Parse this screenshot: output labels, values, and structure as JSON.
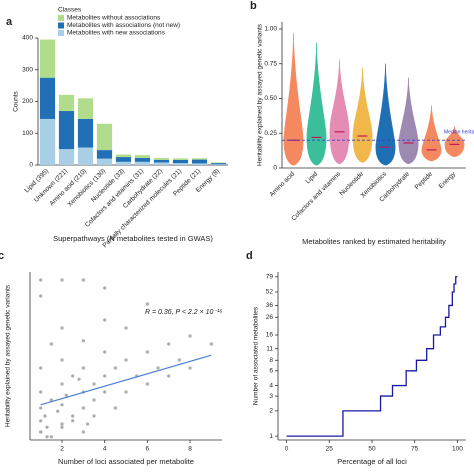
{
  "chart_data": [
    {
      "type": "bar",
      "label": "a",
      "ylabel": "Counts",
      "xlabel": "Superpathways (N metabolites tested in GWAS)",
      "legend_title": "Classes",
      "legend": "upper right",
      "categories": [
        "Lipid (395)",
        "Unknown (221)",
        "Amino acid (210)",
        "Xenobiotics (130)",
        "Nucleotide (33)",
        "Cofactors and vitamins (31)",
        "Carbohydrate (22)",
        "Partially characterized molecules (21)",
        "Peptide (21)",
        "Energy (8)"
      ],
      "series": [
        {
          "name": "Metabolites with new associations",
          "color": "#a8cfe6",
          "values": [
            145,
            50,
            55,
            20,
            10,
            10,
            8,
            6,
            5,
            2
          ]
        },
        {
          "name": "Metabolites with associations (not new)",
          "color": "#2170b5",
          "values": [
            130,
            120,
            90,
            27,
            15,
            12,
            8,
            10,
            12,
            4
          ]
        },
        {
          "name": "Metabolites without associations",
          "color": "#b0dc8c",
          "values": [
            120,
            51,
            65,
            83,
            8,
            9,
            6,
            5,
            4,
            2
          ]
        }
      ],
      "ylim": [
        0,
        400
      ],
      "yticks": [
        0,
        100,
        200,
        300,
        400
      ]
    },
    {
      "type": "violin",
      "label": "b",
      "ylabel": "Heritability explained by assayed genetic variants",
      "xlabel": "Metabolites ranked by estimated heritability",
      "categories": [
        "Amino acid",
        "Lipid",
        "Cofactors and vitamins",
        "Nucleotide",
        "Xenobiotics",
        "Carbohydrate",
        "Peptide",
        "Energy"
      ],
      "colors": [
        "#f4895f",
        "#3bbf9a",
        "#e58cb4",
        "#f0b84a",
        "#1f6fb5",
        "#9c8ab0",
        "#f4895f",
        "#f4895f"
      ],
      "min": [
        0.02,
        0.02,
        0.03,
        0.04,
        0.02,
        0.03,
        0.05,
        0.08
      ],
      "median": [
        0.2,
        0.22,
        0.26,
        0.23,
        0.15,
        0.18,
        0.13,
        0.17
      ],
      "max": [
        0.97,
        0.9,
        0.78,
        0.72,
        0.75,
        0.65,
        0.45,
        0.3
      ],
      "reference": {
        "value": 0.2,
        "label": "Median heritability",
        "color": "#3c3cc8"
      },
      "ylim": [
        0,
        1.05
      ],
      "yticks": [
        0,
        0.25,
        {
          "value": 0.5,
          "label": "0.50"
        },
        0.75,
        {
          "value": 1,
          "label": "1.00"
        }
      ]
    },
    {
      "type": "scatter",
      "label": "c",
      "ylabel": "Heritability explained by assayed genetic variants",
      "xlabel": "Number of loci associated per metabolite",
      "annotation": "R = 0.36, P < 2.2 × 10⁻¹⁶",
      "color": "#aaaaaa",
      "x": [
        1,
        1,
        1,
        1,
        1,
        1.2,
        1.3,
        1.5,
        1.5,
        1.8,
        2,
        2,
        2,
        2,
        2.2,
        2.5,
        2.5,
        3,
        3,
        3,
        3,
        3.2,
        3.5,
        3.5,
        4,
        4,
        4,
        4,
        4.5,
        4.5,
        5,
        5,
        5,
        5.5,
        6,
        6,
        6,
        6.5,
        7,
        7,
        7.5,
        8,
        8,
        9,
        1,
        1.5,
        2,
        2.5,
        3,
        3.5,
        4,
        1,
        2,
        3,
        2,
        1,
        1.3,
        2.8
      ],
      "y": [
        0.05,
        0.12,
        0.2,
        0.3,
        0.45,
        0.15,
        0.08,
        0.25,
        0.6,
        0.18,
        0.1,
        0.22,
        0.35,
        0.5,
        0.28,
        0.15,
        0.4,
        0.2,
        0.3,
        0.45,
        0.62,
        0.1,
        0.25,
        0.35,
        0.3,
        0.4,
        0.55,
        0.75,
        0.2,
        0.45,
        0.3,
        0.5,
        0.7,
        0.4,
        0.35,
        0.55,
        0.85,
        0.45,
        0.4,
        0.6,
        0.5,
        0.45,
        0.65,
        0.6,
        0.05,
        0.02,
        0.08,
        0.12,
        0.05,
        0.15,
        0.95,
        1,
        1,
        1,
        0.7,
        0.9,
        0.02,
        0.38
      ],
      "fit": {
        "x": [
          1,
          9
        ],
        "y": [
          0.22,
          0.53
        ],
        "color": "#4a7fd8"
      },
      "xlim": [
        0.5,
        9.5
      ],
      "xticks": [
        2,
        4,
        6,
        8
      ],
      "ylim": [
        0,
        1.05
      ]
    },
    {
      "type": "line",
      "label": "d",
      "ylabel": "Number of associated metabolites",
      "xlabel": "Percentage of all loci",
      "color": "#1a1aa0",
      "log": true,
      "x": [
        0,
        33,
        33,
        55,
        55,
        62,
        62,
        70,
        70,
        76,
        76,
        82,
        82,
        86,
        86,
        90,
        90,
        93,
        93,
        95,
        95,
        97,
        97,
        98,
        98,
        99,
        99,
        100
      ],
      "y": [
        1,
        1,
        2,
        2,
        3,
        3,
        4,
        4,
        6,
        6,
        8,
        8,
        11,
        11,
        16,
        16,
        20,
        20,
        26,
        26,
        36,
        36,
        52,
        52,
        65,
        65,
        79,
        79
      ],
      "xlim": [
        -5,
        105
      ],
      "xticks": [
        0,
        25,
        50,
        75,
        100
      ],
      "ylim": [
        0.9,
        90
      ],
      "yticks": [
        1,
        2,
        3,
        4,
        6,
        8,
        11,
        16,
        26,
        36,
        52,
        79
      ]
    }
  ]
}
